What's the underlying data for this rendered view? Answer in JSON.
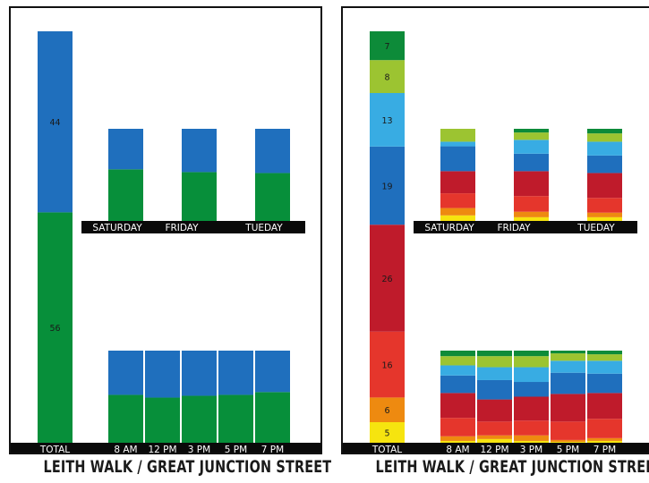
{
  "colors": {
    "green": "#078f3a",
    "blue": "#1f6fbd",
    "r_yellow": "#f6e40f",
    "r_orange": "#ee8a10",
    "r_red": "#e5362c",
    "r_darkred": "#bf1b2b",
    "r_blue": "#1f6fbd",
    "r_lightblue": "#38ace3",
    "r_lime": "#9cc431",
    "r_darkgreen": "#0d8b39",
    "band": "#0a0a0a"
  },
  "captions": {
    "left": "LEITH WALK / GREAT JUNCTION STREET",
    "right": "LEITH WALK / GREAT JUNCTION STREET"
  },
  "chart_data": [
    {
      "type": "bar",
      "stacked": true,
      "percent": true,
      "total": {
        "label": "TOTAL",
        "segments": [
          {
            "value": 56,
            "color": "green",
            "label": "56"
          },
          {
            "value": 44,
            "color": "blue",
            "label": "44"
          }
        ]
      },
      "by_day": {
        "categories": [
          "SATURDAY",
          "FRIDAY",
          "TUEDAY"
        ],
        "series": [
          {
            "color": "green",
            "values": [
              56,
              53,
              52
            ]
          },
          {
            "color": "blue",
            "values": [
              44,
              47,
              48
            ]
          }
        ]
      },
      "by_time": {
        "categories": [
          "8 AM",
          "12 PM",
          "3 PM",
          "5 PM",
          "7 PM"
        ],
        "series": [
          {
            "color": "green",
            "values": [
              52,
              49,
              51,
              52,
              55
            ]
          },
          {
            "color": "blue",
            "values": [
              48,
              51,
              49,
              48,
              45
            ]
          }
        ]
      }
    },
    {
      "type": "bar",
      "stacked": true,
      "percent": true,
      "total": {
        "label": "TOTAL",
        "segments": [
          {
            "value": 5,
            "color": "r_yellow",
            "label": "5"
          },
          {
            "value": 6,
            "color": "r_orange",
            "label": "6"
          },
          {
            "value": 16,
            "color": "r_red",
            "label": "16"
          },
          {
            "value": 26,
            "color": "r_darkred",
            "label": "26"
          },
          {
            "value": 19,
            "color": "r_blue",
            "label": "19"
          },
          {
            "value": 13,
            "color": "r_lightblue",
            "label": "13"
          },
          {
            "value": 8,
            "color": "r_lime",
            "label": "8"
          },
          {
            "value": 7,
            "color": "r_darkgreen",
            "label": "7"
          }
        ]
      },
      "by_day": {
        "categories": [
          "SATURDAY",
          "FRIDAY",
          "TUEDAY"
        ],
        "series": [
          {
            "color": "r_yellow",
            "values": [
              6,
              4,
              4
            ]
          },
          {
            "color": "r_orange",
            "values": [
              8,
              6,
              5
            ]
          },
          {
            "color": "r_red",
            "values": [
              16,
              17,
              16
            ]
          },
          {
            "color": "r_darkred",
            "values": [
              24,
              27,
              27
            ]
          },
          {
            "color": "r_blue",
            "values": [
              27,
              19,
              19
            ]
          },
          {
            "color": "r_lightblue",
            "values": [
              5,
              15,
              15
            ]
          },
          {
            "color": "r_lime",
            "values": [
              14,
              8,
              9
            ]
          },
          {
            "color": "r_darkgreen",
            "values": [
              0,
              4,
              5
            ]
          }
        ]
      },
      "by_time": {
        "categories": [
          "8 AM",
          "12 PM",
          "3 PM",
          "5 PM",
          "7 PM"
        ],
        "series": [
          {
            "color": "r_yellow",
            "values": [
              2,
              4,
              2,
              1,
              2
            ]
          },
          {
            "color": "r_orange",
            "values": [
              5,
              4,
              6,
              2,
              3
            ]
          },
          {
            "color": "r_red",
            "values": [
              20,
              15,
              16,
              20,
              21
            ]
          },
          {
            "color": "r_darkred",
            "values": [
              27,
              24,
              26,
              30,
              28
            ]
          },
          {
            "color": "r_blue",
            "values": [
              19,
              21,
              16,
              23,
              21
            ]
          },
          {
            "color": "r_lightblue",
            "values": [
              11,
              14,
              16,
              13,
              14
            ]
          },
          {
            "color": "r_lime",
            "values": [
              10,
              12,
              12,
              8,
              7
            ]
          },
          {
            "color": "r_darkgreen",
            "values": [
              6,
              6,
              6,
              3,
              4
            ]
          }
        ]
      }
    }
  ]
}
